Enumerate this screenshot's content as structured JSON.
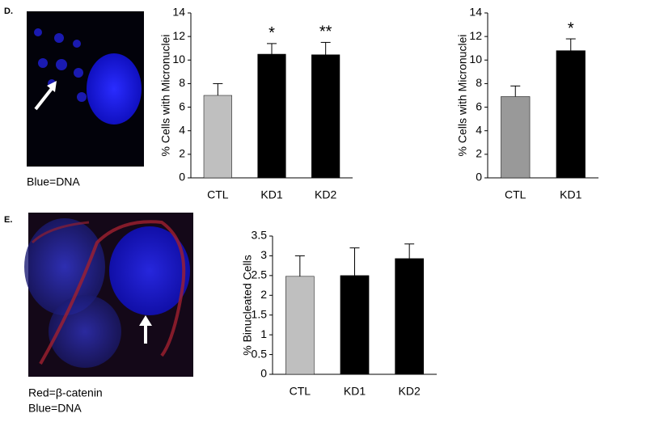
{
  "panels": [
    {
      "label": "D.",
      "caption": [
        "Blue=DNA"
      ]
    },
    {
      "label": "E.",
      "caption": [
        "Red=β-catenin",
        "Blue=DNA"
      ]
    }
  ],
  "chart_data": [
    {
      "type": "bar",
      "ylabel": "% Cells with Micronuclei",
      "categories": [
        "CTL",
        "KD1",
        "KD2"
      ],
      "values": [
        7,
        10.5,
        10.45
      ],
      "errors": [
        1,
        0.9,
        1.05
      ],
      "colors": [
        "#bfbfbf",
        "#000000",
        "#000000"
      ],
      "annotations": [
        {
          "index": 1,
          "text": "*"
        },
        {
          "index": 2,
          "text": "**"
        }
      ],
      "ylim": [
        0,
        14
      ],
      "yticks": [
        0,
        2,
        4,
        6,
        8,
        10,
        12,
        14
      ]
    },
    {
      "type": "bar",
      "ylabel": "% Cells with Micronuclei",
      "categories": [
        "CTL",
        "KD1"
      ],
      "values": [
        6.9,
        10.8
      ],
      "errors": [
        0.9,
        1.0
      ],
      "colors": [
        "#999999",
        "#000000"
      ],
      "annotations": [
        {
          "index": 1,
          "text": "*"
        }
      ],
      "ylim": [
        0,
        14
      ],
      "yticks": [
        0,
        2,
        4,
        6,
        8,
        10,
        12,
        14
      ]
    },
    {
      "type": "bar",
      "ylabel": "% Binucleated Cells",
      "categories": [
        "CTL",
        "KD1",
        "KD2"
      ],
      "values": [
        2.48,
        2.5,
        2.93
      ],
      "errors": [
        0.52,
        0.7,
        0.37
      ],
      "colors": [
        "#bfbfbf",
        "#000000",
        "#000000"
      ],
      "ylim": [
        0,
        3.5
      ],
      "yticks": [
        0,
        0.5,
        1,
        1.5,
        2,
        2.5,
        3,
        3.5
      ]
    }
  ]
}
